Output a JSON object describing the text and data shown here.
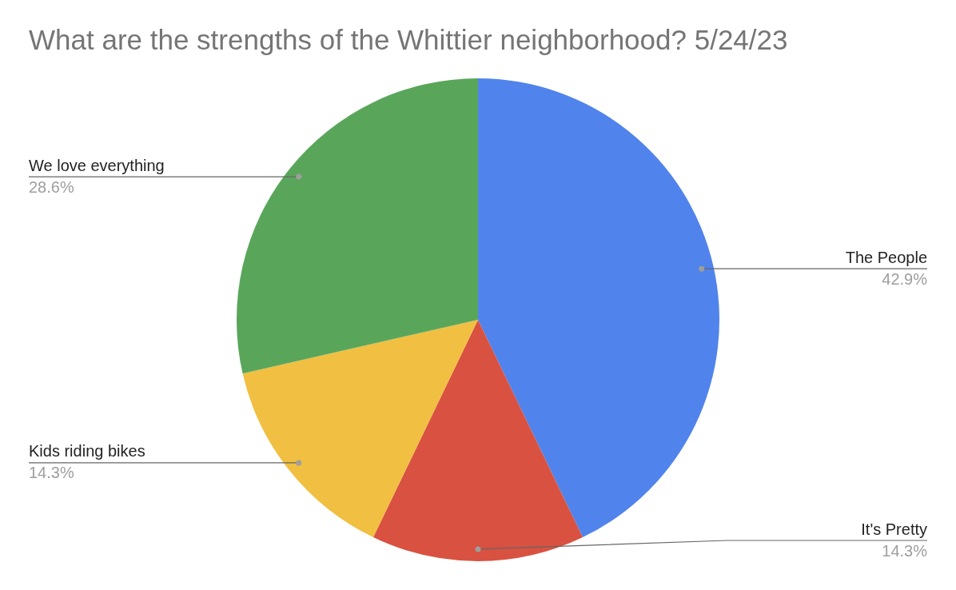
{
  "chart_data": {
    "type": "pie",
    "title": "What are the strengths of the Whittier neighborhood? 5/24/23",
    "categories": [
      "The People",
      "It's Pretty",
      "Kids riding bikes",
      "We love everything"
    ],
    "values": [
      42.9,
      14.3,
      14.3,
      28.6
    ],
    "colors": [
      "#5083ec",
      "#d95140",
      "#f1bf41",
      "#59a65b"
    ],
    "value_labels": [
      "42.9%",
      "14.3%",
      "14.3%",
      "28.6%"
    ],
    "legend": false
  }
}
